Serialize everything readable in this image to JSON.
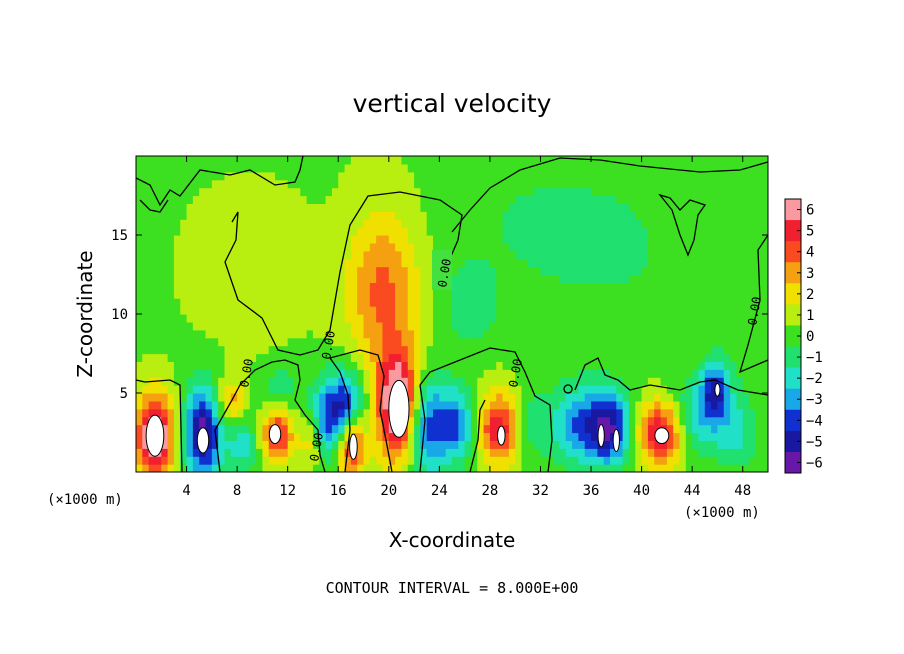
{
  "chart_data": {
    "type": "heatmap",
    "title": "vertical velocity",
    "xlabel": "X-coordinate",
    "ylabel": "Z-coordinate",
    "x_unit": "(×1000 m)",
    "x_unit_right": "(×1000 m)",
    "note": "CONTOUR INTERVAL = 8.000E+00",
    "xlim": [
      0,
      50
    ],
    "ylim": [
      0,
      20
    ],
    "x_ticks": [
      4,
      8,
      12,
      16,
      20,
      24,
      28,
      32,
      36,
      40,
      44,
      48
    ],
    "y_ticks": [
      5,
      10,
      15
    ],
    "contour_label": "0.00",
    "colorbar": {
      "ticks": [
        6,
        5,
        4,
        3,
        2,
        1,
        0,
        -1,
        -2,
        -3,
        -4,
        -5,
        -6
      ],
      "colors": [
        "#fa9aa0",
        "#f02030",
        "#fa4a20",
        "#f5a010",
        "#f0e000",
        "#b8ee10",
        "#3ce020",
        "#20e070",
        "#20e0c8",
        "#18a8e8",
        "#1030d0",
        "#1818a0",
        "#6818a8"
      ]
    },
    "background_value": 0.4,
    "features": [
      {
        "x": 1.5,
        "z": 2.3,
        "sx": 1.0,
        "sz": 1.8,
        "v": 7.2
      },
      {
        "x": 5.3,
        "z": 2.5,
        "sx": 1.0,
        "sz": 2.0,
        "v": -6.5
      },
      {
        "x": 7.5,
        "z": 4.5,
        "sx": 0.8,
        "sz": 1.0,
        "v": 2.6
      },
      {
        "x": 8.5,
        "z": 1.6,
        "sx": 1.0,
        "sz": 1.2,
        "v": -2.4
      },
      {
        "x": 10.5,
        "z": 3.0,
        "sx": 1.1,
        "sz": 1.3,
        "v": -2.0
      },
      {
        "x": 11.0,
        "z": 2.5,
        "sx": 1.0,
        "sz": 1.3,
        "v": 6.0
      },
      {
        "x": 11.5,
        "z": 5.5,
        "sx": 0.8,
        "sz": 1.0,
        "v": -1.8
      },
      {
        "x": 13.8,
        "z": 2.0,
        "sx": 0.6,
        "sz": 1.2,
        "v": 2.2
      },
      {
        "x": 15.5,
        "z": 3.5,
        "sx": 1.3,
        "sz": 1.8,
        "v": -4.2
      },
      {
        "x": 17.0,
        "z": 2.0,
        "sx": 0.8,
        "sz": 1.5,
        "v": 6.5
      },
      {
        "x": 16.8,
        "z": 4.0,
        "sx": 1.0,
        "sz": 1.6,
        "v": -3.8
      },
      {
        "x": 19.5,
        "z": 11.5,
        "sx": 2.0,
        "sz": 3.5,
        "v": 3.4
      },
      {
        "x": 20.8,
        "z": 4.2,
        "sx": 1.2,
        "sz": 2.4,
        "v": 7.5
      },
      {
        "x": 23.0,
        "z": 3.0,
        "sx": 1.3,
        "sz": 2.2,
        "v": -5.0
      },
      {
        "x": 25.5,
        "z": 3.0,
        "sx": 0.9,
        "sz": 1.6,
        "v": -3.5
      },
      {
        "x": 26.5,
        "z": 10.5,
        "sx": 1.5,
        "sz": 1.8,
        "v": -1.6
      },
      {
        "x": 28.8,
        "z": 2.8,
        "sx": 1.2,
        "sz": 1.6,
        "v": 5.0
      },
      {
        "x": 31.0,
        "z": 3.0,
        "sx": 1.2,
        "sz": 1.6,
        "v": -1.6
      },
      {
        "x": 35.0,
        "z": 3.0,
        "sx": 1.6,
        "sz": 1.8,
        "v": -3.6
      },
      {
        "x": 37.5,
        "z": 2.8,
        "sx": 1.2,
        "sz": 1.6,
        "v": -5.4
      },
      {
        "x": 41.5,
        "z": 2.5,
        "sx": 1.3,
        "sz": 1.4,
        "v": 5.4
      },
      {
        "x": 44.5,
        "z": 3.5,
        "sx": 1.5,
        "sz": 1.6,
        "v": -2.8
      },
      {
        "x": 45.8,
        "z": 5.3,
        "sx": 0.8,
        "sz": 1.2,
        "v": -4.2
      },
      {
        "x": 47.5,
        "z": 2.5,
        "sx": 1.2,
        "sz": 1.6,
        "v": -2.0
      },
      {
        "x": 38.0,
        "z": 14.0,
        "sx": 6.0,
        "sz": 4.0,
        "v": -0.9
      },
      {
        "x": 31.0,
        "z": 16.0,
        "sx": 5.0,
        "sz": 3.0,
        "v": -0.7
      },
      {
        "x": 9.0,
        "z": 13.0,
        "sx": 3.0,
        "sz": 3.0,
        "v": 0.8
      },
      {
        "x": 48.0,
        "z": 10.0,
        "sx": 2.0,
        "sz": 4.0,
        "v": -0.6
      }
    ],
    "white_cores": [
      {
        "x": 1.5,
        "z": 2.3,
        "rx": 0.7,
        "rz": 1.3
      },
      {
        "x": 5.3,
        "z": 2.0,
        "rx": 0.45,
        "rz": 0.8
      },
      {
        "x": 11.0,
        "z": 2.4,
        "rx": 0.45,
        "rz": 0.6
      },
      {
        "x": 17.2,
        "z": 1.6,
        "rx": 0.3,
        "rz": 0.8
      },
      {
        "x": 20.8,
        "z": 4.0,
        "rx": 0.8,
        "rz": 1.8
      },
      {
        "x": 28.9,
        "z": 2.3,
        "rx": 0.3,
        "rz": 0.6
      },
      {
        "x": 36.8,
        "z": 2.3,
        "rx": 0.25,
        "rz": 0.7
      },
      {
        "x": 38.0,
        "z": 2.0,
        "rx": 0.25,
        "rz": 0.7
      },
      {
        "x": 41.6,
        "z": 2.3,
        "rx": 0.55,
        "rz": 0.5
      },
      {
        "x": 46.0,
        "z": 5.2,
        "rx": 0.2,
        "rz": 0.4
      }
    ]
  }
}
